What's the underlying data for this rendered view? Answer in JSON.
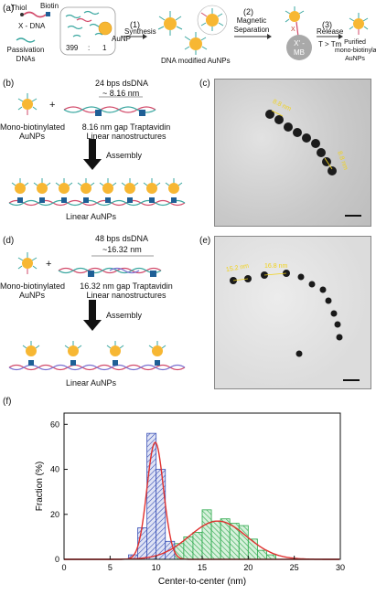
{
  "panel_a": {
    "label": "(a)",
    "thiol": "Thiol",
    "biotin": "Biotin",
    "x_dna": "X - DNA",
    "passivation": [
      "Passivation",
      "DNAs"
    ],
    "ratio_left": "399",
    "ratio_colon": ":",
    "ratio_right": "1",
    "aunp": "AuNP",
    "step1_num": "(1)",
    "step1": "Synthesis",
    "dna_modified": "DNA modified AuNPs",
    "step2_num": "(2)",
    "step2": [
      "Magnetic",
      "Separation"
    ],
    "step3_num": "(3)",
    "step3": "Release",
    "step3_cond": "T > Tm",
    "mb": [
      "X' -",
      "MB"
    ],
    "x_mark": "X",
    "purified": [
      "Purified",
      "mono-biotinylated",
      "AuNPs"
    ]
  },
  "panel_b": {
    "label": "(b)",
    "plus": "+",
    "dsdna": "24 bps dsDNA",
    "gap": "~ 8.16 nm",
    "mono": [
      "Mono-biotinylated",
      "AuNPs"
    ],
    "gap_struct": [
      "8.16 nm gap Traptavidin",
      "Linear nanostructures"
    ],
    "assembly": "Assembly",
    "linear": "Linear  AuNPs"
  },
  "panel_c": {
    "label": "(c)",
    "m1": "8.8 nm",
    "m2": "8.8 nm"
  },
  "panel_d": {
    "label": "(d)",
    "plus": "+",
    "dsdna": "48 bps dsDNA",
    "gap": "~16.32 nm",
    "mono": [
      "Mono-biotinylated",
      "AuNPs"
    ],
    "gap_struct": [
      "16.32 nm gap Traptavidin",
      "Linear nanostructures"
    ],
    "assembly": "Assembly",
    "linear": "Linear  AuNPs"
  },
  "panel_e": {
    "label": "(e)",
    "m1": "15.2 nm",
    "m2": "16.8 nm"
  },
  "panel_f": {
    "label": "(f)"
  },
  "colors": {
    "gold": "#f7b733",
    "blue_hist": "#3b52b7",
    "green_hist": "#2aa84a",
    "fit": "#e0312f",
    "traptavidin": "#1f5f96"
  },
  "chart_data": {
    "type": "bar",
    "xlabel": "Center-to-center (nm)",
    "ylabel": "Fraction (%)",
    "xlim": [
      0,
      30
    ],
    "ylim": [
      0,
      65
    ],
    "xticks": [
      "0",
      "5",
      "10",
      "15",
      "20",
      "25",
      "30"
    ],
    "yticks": [
      "0",
      "20",
      "40",
      "60"
    ],
    "bin_width": 1,
    "series": [
      {
        "bins_start": [
          7,
          8,
          9,
          10,
          11
        ],
        "values": [
          2,
          14,
          56,
          40,
          8
        ],
        "fit": {
          "type": "gaussian",
          "mean": 9.9,
          "sigma": 0.9,
          "peak": 52
        }
      },
      {
        "bins_start": [
          9,
          10,
          11,
          12,
          13,
          14,
          15,
          16,
          17,
          18,
          19,
          20,
          21,
          22
        ],
        "values": [
          1,
          2,
          4,
          7,
          10,
          12,
          22,
          17,
          18,
          16,
          15,
          9,
          4,
          2
        ],
        "fit": {
          "type": "gaussian",
          "mean": 16.7,
          "sigma": 3.1,
          "peak": 17
        }
      }
    ]
  }
}
